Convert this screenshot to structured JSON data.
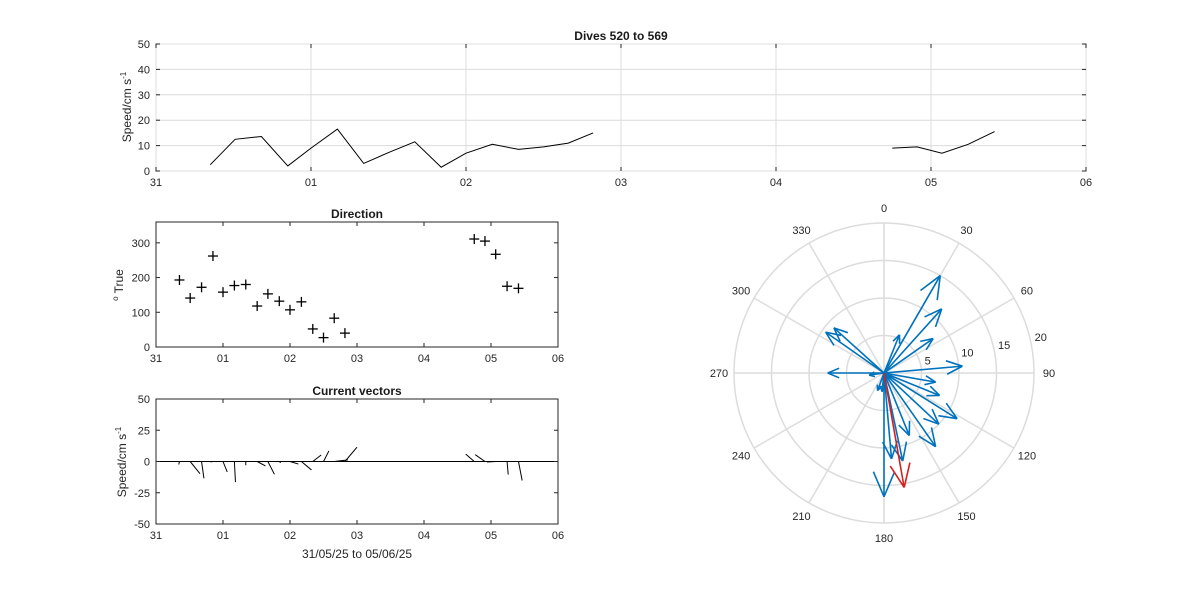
{
  "chart_data": [
    {
      "type": "line",
      "title": "Dives 520 to 569",
      "ylabel": "Speed/cm s",
      "ylabel_sup": "-1",
      "xlabel": "",
      "xlim": [
        0,
        6
      ],
      "ylim": [
        0,
        50
      ],
      "xticks": [
        0,
        1,
        2,
        3,
        4,
        5,
        6
      ],
      "xtick_labels": [
        "31",
        "01",
        "02",
        "03",
        "04",
        "05",
        "06"
      ],
      "yticks": [
        0,
        10,
        20,
        30,
        40,
        50
      ],
      "ytick_labels": [
        "0",
        "10",
        "20",
        "30",
        "40",
        "50"
      ],
      "grid": true,
      "segments": [
        {
          "x": [
            0.35,
            0.51,
            0.68,
            0.85,
            1.0,
            1.17,
            1.34,
            1.51,
            1.67,
            1.84,
            2.0,
            2.17,
            2.34,
            2.5,
            2.66,
            2.82
          ],
          "y": [
            2.5,
            12.5,
            13.6,
            2,
            9,
            16.5,
            3,
            7.5,
            11.5,
            1.5,
            7,
            10.5,
            8.5,
            9.5,
            11,
            15
          ]
        },
        {
          "x": [
            4.75,
            4.91,
            5.07,
            5.24,
            5.41
          ],
          "y": [
            9,
            9.5,
            7,
            10.5,
            15.5
          ]
        }
      ]
    },
    {
      "type": "scatter",
      "title": "Direction",
      "ylabel": "True",
      "ylabel_prefix_sup": "o",
      "xlim": [
        0,
        6
      ],
      "ylim": [
        0,
        360
      ],
      "xticks": [
        0,
        1,
        2,
        3,
        4,
        5,
        6
      ],
      "xtick_labels": [
        "31",
        "01",
        "02",
        "03",
        "04",
        "05",
        "06"
      ],
      "yticks": [
        0,
        100,
        200,
        300
      ],
      "ytick_labels": [
        "0",
        "100",
        "200",
        "300"
      ],
      "grid": false,
      "marker": "+",
      "x": [
        0.35,
        0.51,
        0.68,
        0.85,
        1.0,
        1.17,
        1.34,
        1.51,
        1.67,
        1.84,
        2.0,
        2.17,
        2.34,
        2.5,
        2.66,
        2.82,
        4.75,
        4.91,
        5.07,
        5.24,
        5.41
      ],
      "y": [
        193,
        141,
        172,
        262,
        158,
        177,
        180,
        118,
        153,
        132,
        107,
        130,
        52,
        27,
        83,
        40,
        311,
        305,
        267,
        175,
        169
      ]
    },
    {
      "type": "line",
      "title": "Current vectors",
      "ylabel": "Speed/cm s",
      "ylabel_sup": "-1",
      "xlabel": "31/05/25 to 05/06/25",
      "xlim": [
        0,
        6
      ],
      "ylim": [
        -50,
        50
      ],
      "xticks": [
        0,
        1,
        2,
        3,
        4,
        5,
        6
      ],
      "xtick_labels": [
        "31",
        "01",
        "02",
        "03",
        "04",
        "05",
        "06"
      ],
      "yticks": [
        -50,
        -25,
        0,
        25,
        50
      ],
      "ytick_labels": [
        "-50",
        "-25",
        "0",
        "25",
        "50"
      ],
      "grid": false,
      "vectors": {
        "x": [
          0.35,
          0.51,
          0.68,
          0.85,
          1.0,
          1.17,
          1.34,
          1.51,
          1.67,
          1.84,
          2.0,
          2.17,
          2.34,
          2.5,
          2.66,
          2.82,
          4.75,
          4.91,
          5.07,
          5.24,
          5.41
        ],
        "speed": [
          2.5,
          12.5,
          13.6,
          2,
          9,
          16.5,
          3,
          7.5,
          11.5,
          1.5,
          7,
          10.5,
          8.5,
          9.5,
          11,
          15,
          9,
          9.5,
          7,
          10.5,
          15.5
        ],
        "direction": [
          193,
          141,
          172,
          262,
          158,
          177,
          180,
          118,
          153,
          132,
          107,
          130,
          52,
          27,
          83,
          40,
          311,
          305,
          267,
          175,
          169
        ]
      }
    },
    {
      "type": "polar",
      "title": "",
      "theta_zero": "top",
      "theta_direction": "clockwise",
      "rlim": [
        0,
        20
      ],
      "rticks": [
        5,
        10,
        15,
        20
      ],
      "rtick_labels": [
        "5",
        "10",
        "15",
        "20"
      ],
      "theta_ticks": [
        0,
        30,
        60,
        90,
        120,
        150,
        180,
        210,
        240,
        270,
        300,
        330
      ],
      "theta_tick_labels": [
        "0",
        "30",
        "60",
        "90",
        "120",
        "150",
        "180",
        "210",
        "240",
        "270",
        "300",
        "330"
      ],
      "grid": true,
      "arrows": [
        {
          "dir": 30,
          "speed": 15,
          "color": "#0072bd"
        },
        {
          "dir": 42,
          "speed": 11.5,
          "color": "#0072bd"
        },
        {
          "dir": 55,
          "speed": 8,
          "color": "#0072bd"
        },
        {
          "dir": 22,
          "speed": 5.5,
          "color": "#0072bd"
        },
        {
          "dir": 85,
          "speed": 10.5,
          "color": "#0072bd"
        },
        {
          "dir": 100,
          "speed": 7,
          "color": "#0072bd"
        },
        {
          "dir": 112,
          "speed": 8,
          "color": "#0072bd"
        },
        {
          "dir": 122,
          "speed": 11.5,
          "color": "#0072bd"
        },
        {
          "dir": 133,
          "speed": 10,
          "color": "#0072bd"
        },
        {
          "dir": 145,
          "speed": 12,
          "color": "#0072bd"
        },
        {
          "dir": 158,
          "speed": 9,
          "color": "#0072bd"
        },
        {
          "dir": 168,
          "speed": 12,
          "color": "#0072bd"
        },
        {
          "dir": 175,
          "speed": 11.5,
          "color": "#0072bd"
        },
        {
          "dir": 180,
          "speed": 16.5,
          "color": "#0072bd"
        },
        {
          "dir": 186,
          "speed": 2.5,
          "color": "#0072bd"
        },
        {
          "dir": 200,
          "speed": 2.5,
          "color": "#0072bd"
        },
        {
          "dir": 262,
          "speed": 2,
          "color": "#0072bd"
        },
        {
          "dir": 270,
          "speed": 7.5,
          "color": "#0072bd"
        },
        {
          "dir": 305,
          "speed": 9.5,
          "color": "#0072bd"
        },
        {
          "dir": 312,
          "speed": 9,
          "color": "#0072bd"
        },
        {
          "dir": 170,
          "speed": 15.5,
          "color": "#d62020"
        }
      ]
    }
  ]
}
